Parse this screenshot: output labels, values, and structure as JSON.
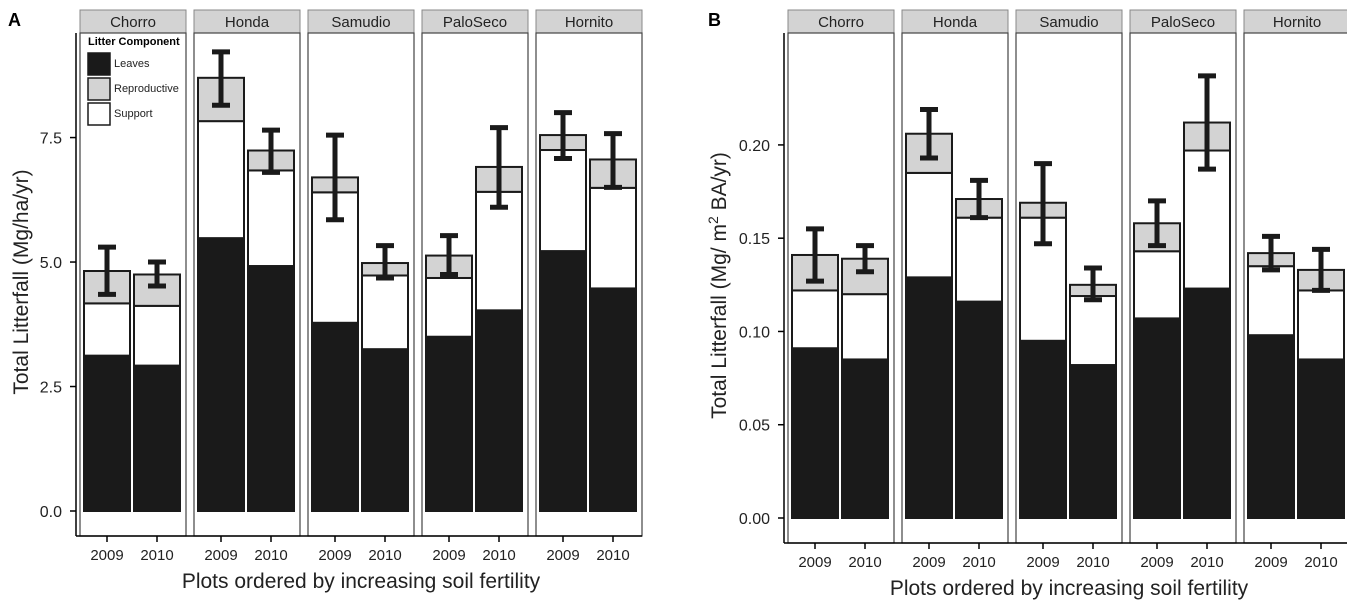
{
  "chart_data": [
    {
      "type": "bar",
      "stacked": true,
      "panel_label": "A",
      "facets": [
        "Chorro",
        "Honda",
        "Samudio",
        "PaloSeco",
        "Hornito"
      ],
      "categories": [
        "2009",
        "2010"
      ],
      "xlabel": "Plots ordered by increasing soil fertility",
      "ylabel": "Total Litterfall (Mg/ha/yr)",
      "ylim": [
        0,
        9.6
      ],
      "yticks": [
        "0.0",
        "2.5",
        "5.0",
        "7.5"
      ],
      "legend": {
        "title": "Litter Component",
        "placement": "top-left inside first facet",
        "entries": [
          "Leaves",
          "Reproductive",
          "Support"
        ]
      },
      "series": [
        {
          "name": "Leaves",
          "color": "#1a1a1a",
          "values": [
            [
              3.12,
              2.92
            ],
            [
              5.48,
              4.92
            ],
            [
              3.78,
              3.25
            ],
            [
              3.5,
              4.03
            ],
            [
              5.22,
              4.47
            ]
          ]
        },
        {
          "name": "Support",
          "color": "#ffffff",
          "values": [
            [
              1.05,
              1.2
            ],
            [
              2.35,
              1.92
            ],
            [
              2.62,
              1.48
            ],
            [
              1.18,
              2.38
            ],
            [
              2.03,
              2.02
            ]
          ]
        },
        {
          "name": "Reproductive",
          "color": "#d3d3d3",
          "values": [
            [
              0.65,
              0.63
            ],
            [
              0.87,
              0.4
            ],
            [
              0.3,
              0.25
            ],
            [
              0.45,
              0.5
            ],
            [
              0.3,
              0.57
            ]
          ]
        }
      ],
      "error_bars": [
        [
          [
            4.35,
            5.3
          ],
          [
            4.52,
            5.0
          ]
        ],
        [
          [
            8.15,
            9.22
          ],
          [
            6.8,
            7.65
          ]
        ],
        [
          [
            5.85,
            7.55
          ],
          [
            4.68,
            5.33
          ]
        ],
        [
          [
            4.75,
            5.53
          ],
          [
            6.1,
            7.7
          ]
        ],
        [
          [
            7.08,
            8.0
          ],
          [
            6.5,
            7.58
          ]
        ]
      ]
    },
    {
      "type": "bar",
      "stacked": true,
      "panel_label": "B",
      "facets": [
        "Chorro",
        "Honda",
        "Samudio",
        "PaloSeco",
        "Hornito"
      ],
      "categories": [
        "2009",
        "2010"
      ],
      "xlabel": "Plots ordered by increasing soil fertility",
      "ylabel_parts": [
        "Total Litterfall (Mg/ m",
        "2",
        " BA/yr)"
      ],
      "ylim": [
        0,
        0.26
      ],
      "yticks": [
        "0.00",
        "0.05",
        "0.10",
        "0.15",
        "0.20"
      ],
      "series": [
        {
          "name": "Leaves",
          "color": "#1a1a1a",
          "values": [
            [
              0.091,
              0.085
            ],
            [
              0.129,
              0.116
            ],
            [
              0.095,
              0.082
            ],
            [
              0.107,
              0.123
            ],
            [
              0.098,
              0.085
            ]
          ]
        },
        {
          "name": "Support",
          "color": "#ffffff",
          "values": [
            [
              0.031,
              0.035
            ],
            [
              0.056,
              0.045
            ],
            [
              0.066,
              0.037
            ],
            [
              0.036,
              0.074
            ],
            [
              0.037,
              0.037
            ]
          ]
        },
        {
          "name": "Reproductive",
          "color": "#d3d3d3",
          "values": [
            [
              0.019,
              0.019
            ],
            [
              0.021,
              0.01
            ],
            [
              0.008,
              0.006
            ],
            [
              0.015,
              0.015
            ],
            [
              0.007,
              0.011
            ]
          ]
        }
      ],
      "error_bars": [
        [
          [
            0.127,
            0.155
          ],
          [
            0.132,
            0.146
          ]
        ],
        [
          [
            0.193,
            0.219
          ],
          [
            0.161,
            0.181
          ]
        ],
        [
          [
            0.147,
            0.19
          ],
          [
            0.117,
            0.134
          ]
        ],
        [
          [
            0.146,
            0.17
          ],
          [
            0.187,
            0.237
          ]
        ],
        [
          [
            0.133,
            0.151
          ],
          [
            0.122,
            0.144
          ]
        ]
      ]
    }
  ]
}
